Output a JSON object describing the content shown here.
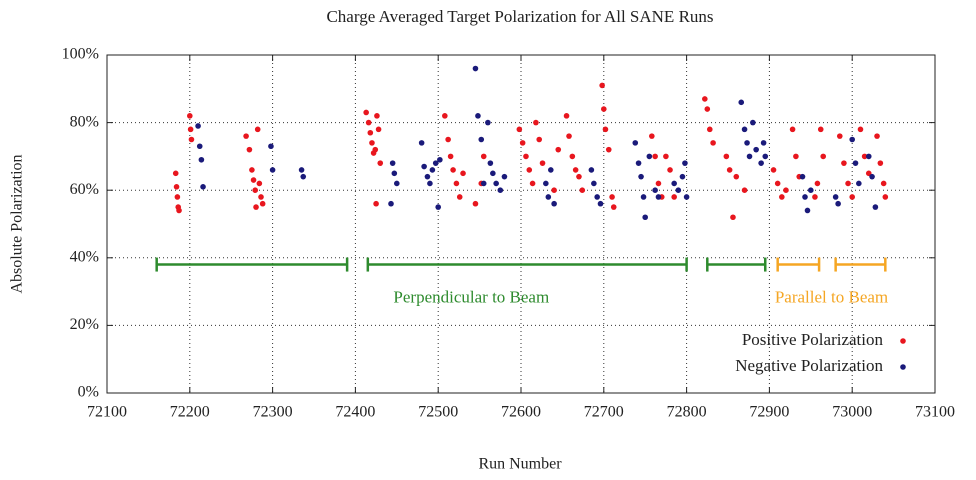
{
  "chart_data": {
    "type": "scatter",
    "title": "Charge Averaged Target Polarization for All SANE Runs",
    "xlabel": "Run Number",
    "ylabel": "Absolute Polarization",
    "xlim": [
      72100,
      73100
    ],
    "xticks": [
      72100,
      72200,
      72300,
      72400,
      72500,
      72600,
      72700,
      72800,
      72900,
      73000,
      73100
    ],
    "ylim": [
      0,
      100
    ],
    "yticks": [
      {
        "value": 0,
        "label": "0%"
      },
      {
        "value": 20,
        "label": "20%"
      },
      {
        "value": 40,
        "label": "40%"
      },
      {
        "value": 60,
        "label": "60%"
      },
      {
        "value": 80,
        "label": "80%"
      },
      {
        "value": 100,
        "label": "100%"
      }
    ],
    "grid": true,
    "legend": "lower right",
    "ranges": [
      {
        "x": [
          72160,
          72390
        ],
        "y": 38,
        "color": "#2e8b2e"
      },
      {
        "x": [
          72415,
          72800
        ],
        "y": 38,
        "color": "#2e8b2e"
      },
      {
        "x": [
          72825,
          72895
        ],
        "y": 38,
        "color": "#2e8b2e"
      },
      {
        "x": [
          72910,
          72960
        ],
        "y": 38,
        "color": "#f5a623"
      },
      {
        "x": [
          72980,
          73040
        ],
        "y": 38,
        "color": "#f5a623"
      }
    ],
    "annotations": [
      {
        "text": "Perpendicular to Beam",
        "x": 72540,
        "y": 28,
        "color": "#2e8b2e"
      },
      {
        "text": "Parallel to Beam",
        "x": 72975,
        "y": 28,
        "color": "#f5a623"
      }
    ],
    "series": [
      {
        "name": "Positive Polarization",
        "color": "#e8161e",
        "x": [
          72183,
          72184,
          72185,
          72186,
          72187,
          72200,
          72201,
          72202,
          72268,
          72272,
          72275,
          72277,
          72279,
          72280,
          72282,
          72284,
          72286,
          72288,
          72413,
          72416,
          72418,
          72420,
          72422,
          72424,
          72426,
          72428,
          72430,
          72425,
          72508,
          72512,
          72515,
          72518,
          72522,
          72526,
          72530,
          72545,
          72552,
          72555,
          72598,
          72602,
          72606,
          72610,
          72614,
          72618,
          72622,
          72626,
          72640,
          72645,
          72655,
          72658,
          72662,
          72666,
          72670,
          72674,
          72698,
          72700,
          72702,
          72706,
          72710,
          72712,
          72758,
          72762,
          72766,
          72770,
          72775,
          72780,
          72785,
          72822,
          72825,
          72828,
          72832,
          72848,
          72852,
          72856,
          72860,
          72870,
          72905,
          72910,
          72915,
          72920,
          72928,
          72932,
          72936,
          72955,
          72958,
          72962,
          72965,
          72985,
          72990,
          72995,
          73000,
          73010,
          73015,
          73020,
          73030,
          73034,
          73038,
          73040
        ],
        "values": [
          65,
          61,
          58,
          55,
          54,
          82,
          78,
          75,
          76,
          72,
          66,
          63,
          60,
          55,
          78,
          62,
          58,
          56,
          83,
          80,
          77,
          74,
          71,
          72,
          82,
          78,
          68,
          56,
          82,
          75,
          70,
          66,
          62,
          58,
          65,
          56,
          62,
          70,
          78,
          74,
          70,
          66,
          62,
          80,
          75,
          68,
          60,
          72,
          82,
          76,
          70,
          66,
          64,
          60,
          91,
          84,
          78,
          72,
          58,
          55,
          76,
          70,
          62,
          58,
          70,
          66,
          58,
          87,
          84,
          78,
          74,
          70,
          66,
          52,
          64,
          60,
          66,
          62,
          58,
          60,
          78,
          70,
          64,
          58,
          62,
          78,
          70,
          76,
          68,
          62,
          58,
          78,
          70,
          65,
          76,
          68,
          62,
          58
        ]
      },
      {
        "name": "Negative Polarization",
        "color": "#1a1a7a",
        "x": [
          72210,
          72212,
          72214,
          72216,
          72298,
          72300,
          72335,
          72337,
          72445,
          72447,
          72450,
          72443,
          72480,
          72483,
          72487,
          72490,
          72493,
          72497,
          72500,
          72502,
          72545,
          72548,
          72552,
          72555,
          72560,
          72563,
          72566,
          72570,
          72575,
          72580,
          72630,
          72633,
          72636,
          72640,
          72685,
          72688,
          72692,
          72696,
          72738,
          72742,
          72745,
          72748,
          72750,
          72755,
          72762,
          72766,
          72785,
          72790,
          72795,
          72798,
          72800,
          72866,
          72870,
          72873,
          72876,
          72880,
          72884,
          72890,
          72893,
          72895,
          72940,
          72943,
          72946,
          72950,
          72980,
          72983,
          73000,
          73004,
          73008,
          73020,
          73024,
          73028
        ],
        "values": [
          79,
          73,
          69,
          61,
          73,
          66,
          66,
          64,
          68,
          65,
          62,
          56,
          74,
          67,
          64,
          62,
          66,
          68,
          55,
          69,
          96,
          82,
          75,
          62,
          80,
          68,
          65,
          62,
          60,
          64,
          62,
          58,
          66,
          56,
          66,
          62,
          58,
          56,
          74,
          68,
          64,
          58,
          52,
          70,
          60,
          58,
          62,
          60,
          64,
          68,
          58,
          86,
          78,
          74,
          70,
          80,
          72,
          68,
          74,
          70,
          64,
          58,
          54,
          60,
          58,
          56,
          75,
          68,
          62,
          70,
          64,
          55
        ]
      }
    ]
  }
}
